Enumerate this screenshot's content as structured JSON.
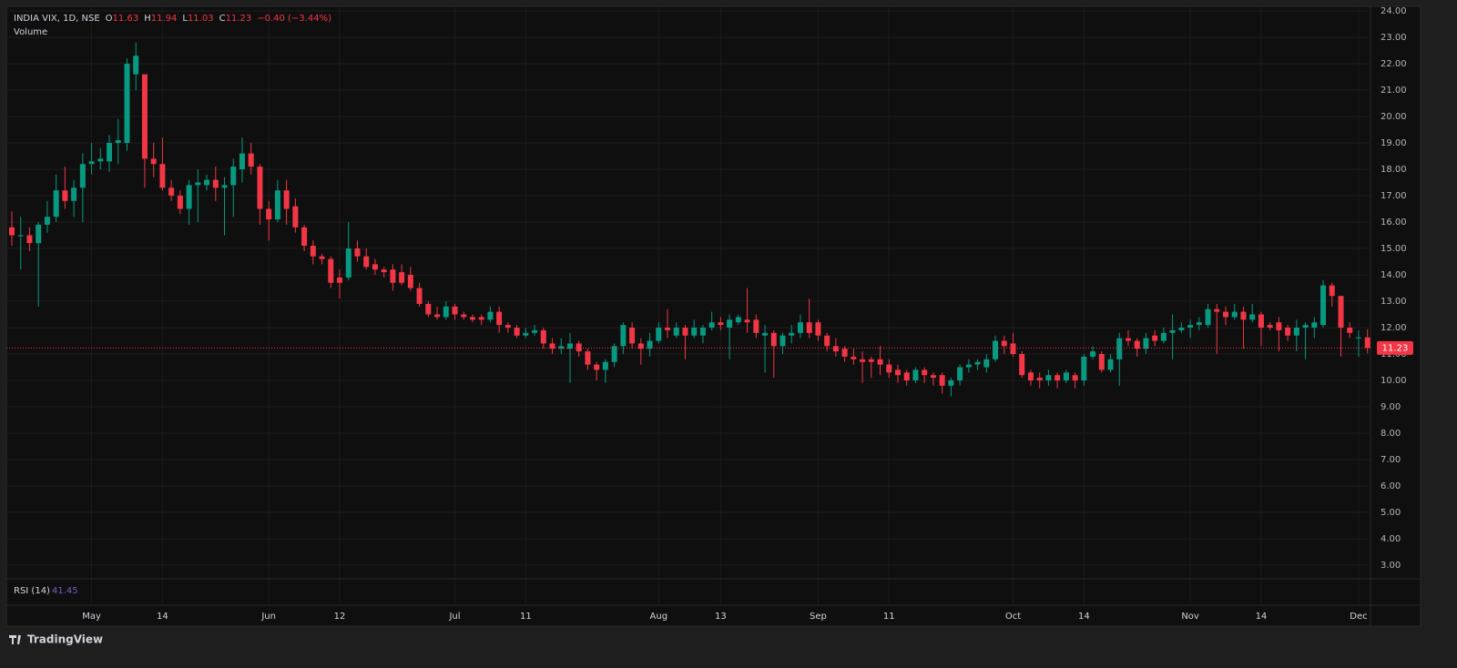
{
  "chart_data": {
    "type": "candlestick",
    "title": "INDIA VIX, 1D, NSE",
    "legend_letters": [
      "O",
      "H",
      "L",
      "C"
    ],
    "change": "−0.40 (−3.44%)",
    "volume_label": "Volume",
    "rsi": {
      "label": "RSI (14)",
      "value": 41.45
    },
    "brand": "TradingView",
    "up_color": "#089981",
    "down_color": "#f23645",
    "grid": true,
    "categories": [
      null,
      null,
      null,
      null,
      null,
      null,
      null,
      null,
      null,
      "May",
      null,
      null,
      null,
      null,
      null,
      null,
      null,
      "14",
      null,
      null,
      null,
      null,
      null,
      null,
      null,
      null,
      null,
      null,
      null,
      "Jun",
      null,
      null,
      null,
      null,
      null,
      null,
      null,
      "12",
      null,
      null,
      null,
      null,
      null,
      null,
      null,
      null,
      null,
      null,
      null,
      null,
      "Jul",
      null,
      null,
      null,
      null,
      null,
      null,
      null,
      "11",
      null,
      null,
      null,
      null,
      null,
      null,
      null,
      null,
      null,
      null,
      null,
      null,
      null,
      null,
      "Aug",
      null,
      null,
      null,
      null,
      null,
      null,
      "13",
      null,
      null,
      null,
      null,
      null,
      null,
      null,
      null,
      null,
      null,
      "Sep",
      null,
      null,
      null,
      null,
      null,
      null,
      null,
      "11",
      null,
      null,
      null,
      null,
      null,
      null,
      null,
      null,
      null,
      null,
      null,
      null,
      null,
      "Oct",
      null,
      null,
      null,
      null,
      null,
      null,
      null,
      "14",
      null,
      null,
      null,
      null,
      null,
      null,
      null,
      null,
      null,
      null,
      null,
      "Nov",
      null,
      null,
      null,
      null,
      null,
      null,
      null,
      "14",
      null,
      null,
      null,
      null,
      null,
      null,
      null,
      null,
      null,
      null,
      "Dec",
      null
    ],
    "open": [
      15.8,
      15.5,
      15.5,
      15.2,
      15.9,
      16.2,
      17.2,
      16.8,
      17.3,
      18.2,
      18.3,
      18.3,
      19.0,
      19.0,
      21.6,
      21.6,
      18.4,
      18.2,
      17.3,
      17.0,
      16.5,
      17.4,
      17.4,
      17.6,
      17.3,
      17.4,
      18.0,
      18.6,
      18.1,
      16.5,
      16.1,
      17.2,
      16.6,
      15.8,
      15.1,
      14.7,
      14.6,
      13.9,
      13.9,
      15.0,
      14.7,
      14.4,
      14.2,
      14.2,
      14.1,
      14.0,
      13.5,
      12.9,
      12.5,
      12.4,
      12.8,
      12.5,
      12.4,
      12.4,
      12.3,
      12.6,
      12.1,
      12.0,
      11.7,
      11.8,
      11.9,
      11.4,
      11.2,
      11.2,
      11.4,
      11.1,
      10.6,
      10.4,
      10.7,
      11.3,
      12.0,
      11.4,
      11.2,
      11.5,
      12.0,
      11.7,
      12.0,
      11.7,
      11.7,
      12.0,
      12.2,
      12.0,
      12.2,
      12.3,
      12.3,
      11.7,
      11.8,
      11.3,
      11.7,
      11.8,
      12.2,
      12.2,
      11.7,
      11.3,
      11.2,
      10.9,
      10.8,
      10.8,
      10.8,
      10.6,
      10.4,
      10.3,
      10.0,
      10.4,
      10.2,
      10.2,
      9.8,
      10.0,
      10.5,
      10.6,
      10.5,
      10.8,
      11.5,
      11.4,
      11.0,
      10.3,
      10.1,
      10.0,
      10.2,
      10.0,
      10.2,
      10.0,
      10.9,
      11.0,
      10.4,
      10.8,
      11.6,
      11.5,
      11.2,
      11.7,
      11.5,
      11.8,
      11.9,
      12.0,
      12.1,
      12.1,
      12.7,
      12.6,
      12.4,
      12.6,
      12.3,
      12.5,
      12.1,
      12.2,
      12.0,
      11.7,
      12.0,
      12.0,
      12.1,
      13.6,
      13.2,
      12.0,
      11.6,
      11.63
    ],
    "high": [
      16.4,
      16.2,
      15.8,
      16.0,
      16.8,
      17.8,
      18.1,
      17.6,
      18.6,
      19.0,
      18.8,
      19.3,
      19.9,
      22.2,
      22.8,
      21.6,
      19.0,
      19.2,
      17.6,
      17.2,
      17.6,
      18.0,
      17.8,
      18.1,
      17.7,
      18.4,
      19.2,
      19.0,
      18.2,
      16.8,
      17.6,
      17.6,
      16.9,
      15.9,
      15.3,
      14.8,
      14.7,
      14.2,
      16.0,
      15.3,
      15.0,
      14.6,
      14.3,
      14.4,
      14.4,
      14.3,
      13.7,
      13.0,
      12.8,
      13.0,
      12.9,
      12.6,
      12.5,
      12.5,
      12.8,
      12.8,
      12.2,
      12.1,
      12.0,
      12.1,
      12.0,
      11.6,
      11.6,
      11.8,
      11.5,
      11.2,
      10.7,
      10.8,
      11.4,
      12.2,
      12.2,
      11.6,
      11.8,
      12.2,
      12.7,
      12.2,
      12.1,
      12.3,
      12.1,
      12.6,
      12.4,
      12.5,
      12.5,
      13.5,
      12.5,
      12.1,
      11.9,
      11.8,
      12.1,
      12.5,
      13.1,
      12.3,
      11.8,
      11.6,
      11.3,
      11.2,
      11.1,
      10.9,
      11.3,
      10.8,
      10.6,
      10.4,
      10.5,
      10.5,
      10.3,
      10.3,
      10.1,
      10.6,
      10.8,
      10.8,
      11.0,
      11.7,
      11.7,
      11.8,
      11.1,
      10.4,
      10.3,
      10.4,
      10.3,
      10.4,
      10.3,
      11.0,
      11.3,
      11.1,
      11.0,
      11.8,
      11.9,
      11.6,
      11.8,
      11.9,
      12.0,
      12.5,
      12.2,
      12.3,
      12.4,
      12.9,
      12.9,
      12.8,
      12.9,
      12.8,
      12.9,
      12.6,
      12.2,
      12.4,
      12.1,
      12.3,
      12.2,
      12.4,
      13.8,
      13.7,
      13.2,
      12.2,
      11.9,
      11.94
    ],
    "low": [
      15.1,
      14.2,
      14.9,
      12.8,
      15.6,
      16.0,
      16.5,
      16.2,
      16.0,
      17.8,
      18.0,
      17.9,
      18.2,
      18.7,
      21.0,
      17.3,
      17.7,
      17.2,
      16.8,
      16.3,
      15.9,
      16.0,
      17.2,
      16.8,
      15.5,
      16.2,
      17.5,
      17.8,
      15.9,
      15.3,
      16.0,
      15.9,
      15.6,
      14.9,
      14.4,
      14.4,
      13.5,
      13.1,
      13.8,
      14.5,
      14.2,
      14.0,
      13.9,
      13.4,
      13.6,
      13.4,
      12.8,
      12.4,
      12.3,
      12.3,
      12.3,
      12.3,
      12.2,
      12.1,
      12.2,
      11.8,
      11.8,
      11.6,
      11.6,
      11.7,
      11.2,
      11.0,
      11.0,
      9.9,
      10.9,
      10.4,
      10.0,
      9.9,
      10.5,
      11.0,
      11.2,
      10.6,
      10.9,
      11.4,
      11.6,
      11.6,
      10.8,
      11.6,
      11.4,
      11.9,
      11.9,
      10.8,
      12.1,
      11.8,
      11.6,
      10.3,
      10.1,
      11.0,
      11.4,
      11.6,
      11.6,
      11.5,
      11.1,
      10.9,
      10.7,
      10.6,
      9.9,
      10.1,
      10.2,
      10.1,
      9.9,
      9.8,
      9.9,
      9.9,
      9.8,
      9.5,
      9.4,
      9.8,
      10.3,
      10.4,
      10.3,
      10.7,
      11.0,
      10.9,
      10.1,
      9.8,
      9.7,
      9.8,
      9.7,
      9.9,
      9.7,
      9.8,
      10.8,
      10.3,
      10.3,
      9.8,
      11.3,
      10.9,
      11.0,
      11.3,
      11.4,
      10.8,
      11.8,
      11.6,
      11.9,
      12.0,
      11.0,
      12.1,
      12.3,
      11.2,
      12.2,
      11.3,
      11.9,
      11.1,
      11.5,
      11.1,
      10.8,
      11.6,
      12.0,
      12.8,
      10.9,
      11.6,
      10.9,
      11.03
    ],
    "close": [
      15.5,
      15.5,
      15.2,
      15.9,
      16.2,
      17.2,
      16.8,
      17.3,
      18.2,
      18.3,
      18.4,
      19.0,
      19.1,
      22.0,
      22.3,
      18.4,
      18.2,
      17.3,
      17.0,
      16.5,
      17.4,
      17.5,
      17.6,
      17.3,
      17.4,
      18.1,
      18.6,
      18.1,
      16.5,
      16.1,
      17.2,
      16.5,
      15.8,
      15.1,
      14.7,
      14.6,
      13.7,
      13.7,
      15.0,
      14.7,
      14.3,
      14.2,
      14.1,
      13.7,
      13.7,
      13.5,
      12.9,
      12.5,
      12.4,
      12.8,
      12.5,
      12.4,
      12.3,
      12.3,
      12.6,
      12.1,
      12.0,
      11.7,
      11.8,
      11.9,
      11.4,
      11.2,
      11.3,
      11.4,
      11.1,
      10.6,
      10.4,
      10.7,
      11.3,
      12.1,
      11.4,
      11.2,
      11.5,
      12.0,
      11.9,
      12.0,
      11.7,
      12.0,
      12.0,
      12.2,
      12.1,
      12.3,
      12.4,
      12.2,
      11.8,
      11.8,
      11.3,
      11.7,
      11.8,
      12.2,
      11.8,
      11.7,
      11.3,
      11.1,
      10.9,
      10.8,
      10.7,
      10.7,
      10.6,
      10.3,
      10.2,
      10.0,
      10.4,
      10.2,
      10.1,
      9.8,
      10.0,
      10.5,
      10.6,
      10.7,
      10.8,
      11.5,
      11.3,
      11.0,
      10.2,
      10.0,
      10.0,
      10.2,
      10.0,
      10.3,
      10.0,
      10.9,
      11.1,
      10.4,
      10.8,
      11.6,
      11.5,
      11.2,
      11.6,
      11.5,
      11.8,
      11.9,
      12.0,
      12.1,
      12.2,
      12.7,
      12.6,
      12.4,
      12.6,
      12.3,
      12.5,
      12.0,
      12.0,
      11.9,
      11.7,
      12.0,
      12.1,
      12.2,
      13.6,
      13.2,
      12.0,
      11.8,
      11.63,
      11.23
    ],
    "ylim": [
      3,
      24
    ],
    "yticks": [
      {
        "value": 3,
        "label": "3.00"
      },
      {
        "value": 4,
        "label": "4.00"
      },
      {
        "value": 5,
        "label": "5.00"
      },
      {
        "value": 6,
        "label": "6.00"
      },
      {
        "value": 7,
        "label": "7.00"
      },
      {
        "value": 8,
        "label": "8.00"
      },
      {
        "value": 9,
        "label": "9.00"
      },
      {
        "value": 10,
        "label": "10.00"
      },
      {
        "value": 11,
        "label": "11.00"
      },
      {
        "value": 12,
        "label": "12.00"
      },
      {
        "value": 13,
        "label": "13.00"
      },
      {
        "value": 14,
        "label": "14.00"
      },
      {
        "value": 15,
        "label": "15.00"
      },
      {
        "value": 16,
        "label": "16.00"
      },
      {
        "value": 17,
        "label": "17.00"
      },
      {
        "value": 18,
        "label": "18.00"
      },
      {
        "value": 19,
        "label": "19.00"
      },
      {
        "value": 20,
        "label": "20.00"
      },
      {
        "value": 21,
        "label": "21.00"
      },
      {
        "value": 22,
        "label": "22.00"
      },
      {
        "value": 23,
        "label": "23.00"
      },
      {
        "value": 24,
        "label": "24.00"
      }
    ]
  }
}
